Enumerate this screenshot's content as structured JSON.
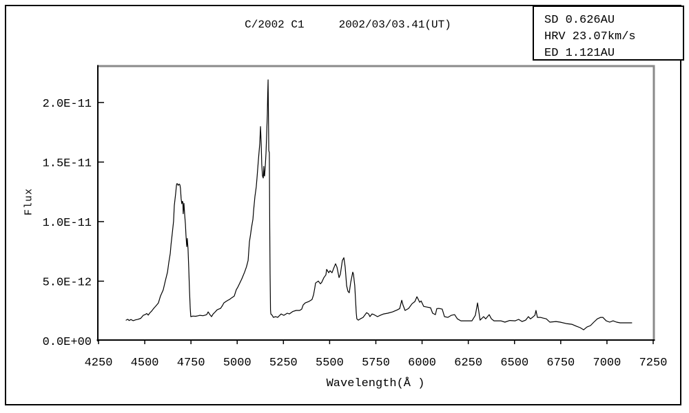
{
  "info_box": {
    "lines": [
      "SD 0.626AU",
      "HRV 23.07km/s",
      "ED 1.121AU"
    ]
  },
  "chart_data": {
    "type": "line",
    "title": "C/2002 C1    2002/03/03.41(UT)",
    "title_parts": [
      "C/2002 C1",
      "2002/03/03.41(UT)"
    ],
    "xlabel": "Wavelength(Å )",
    "ylabel": "Flux",
    "xlim": [
      4250,
      7250
    ],
    "ylim": [
      0,
      2.3e-11
    ],
    "grid": false,
    "legend_position": "none",
    "line_color": "#000000",
    "frame_gray": "#8a8a8a",
    "x_ticks": [
      {
        "value": 4250,
        "label": "4250"
      },
      {
        "value": 4500,
        "label": "4500"
      },
      {
        "value": 4750,
        "label": "4750"
      },
      {
        "value": 5000,
        "label": "5000"
      },
      {
        "value": 5250,
        "label": "5250"
      },
      {
        "value": 5500,
        "label": "5500"
      },
      {
        "value": 5750,
        "label": "5750"
      },
      {
        "value": 6000,
        "label": "6000"
      },
      {
        "value": 6250,
        "label": "6250"
      },
      {
        "value": 6500,
        "label": "6500"
      },
      {
        "value": 6750,
        "label": "6750"
      },
      {
        "value": 7000,
        "label": "7000"
      },
      {
        "value": 7250,
        "label": "7250"
      }
    ],
    "y_ticks": [
      {
        "value": 0,
        "label": "0.0E+00"
      },
      {
        "value": 5e-12,
        "label": "5.0E-12"
      },
      {
        "value": 1e-11,
        "label": "1.0E-11"
      },
      {
        "value": 1.5e-11,
        "label": "1.5E-11"
      },
      {
        "value": 2e-11,
        "label": "2.0E-11"
      }
    ],
    "series": [
      {
        "name": "comet-spectrum",
        "flux_unit_factor": 1e-12,
        "points": [
          [
            4399,
            1.73
          ],
          [
            4408,
            1.8
          ],
          [
            4416,
            1.7
          ],
          [
            4425,
            1.78
          ],
          [
            4437,
            1.68
          ],
          [
            4450,
            1.75
          ],
          [
            4463,
            1.8
          ],
          [
            4478,
            1.88
          ],
          [
            4492,
            2.13
          ],
          [
            4503,
            2.2
          ],
          [
            4511,
            2.28
          ],
          [
            4519,
            2.15
          ],
          [
            4526,
            2.31
          ],
          [
            4538,
            2.5
          ],
          [
            4548,
            2.71
          ],
          [
            4562,
            2.95
          ],
          [
            4574,
            3.17
          ],
          [
            4585,
            3.75
          ],
          [
            4600,
            4.27
          ],
          [
            4611,
            5.01
          ],
          [
            4623,
            5.76
          ],
          [
            4630,
            6.57
          ],
          [
            4638,
            7.32
          ],
          [
            4642,
            8.07
          ],
          [
            4649,
            9.05
          ],
          [
            4656,
            10.03
          ],
          [
            4660,
            11.36
          ],
          [
            4667,
            12.33
          ],
          [
            4672,
            13.1
          ],
          [
            4675,
            13.2
          ],
          [
            4681,
            13.05
          ],
          [
            4686,
            13.15
          ],
          [
            4690,
            13.09
          ],
          [
            4693,
            12.8
          ],
          [
            4697,
            11.93
          ],
          [
            4700,
            11.5
          ],
          [
            4703,
            11.7
          ],
          [
            4706,
            11.64
          ],
          [
            4708,
            10.66
          ],
          [
            4712,
            11.53
          ],
          [
            4716,
            10.61
          ],
          [
            4720,
            9.8
          ],
          [
            4723,
            8.88
          ],
          [
            4727,
            7.9
          ],
          [
            4730,
            8.59
          ],
          [
            4734,
            7.72
          ],
          [
            4738,
            6.17
          ],
          [
            4742,
            4.27
          ],
          [
            4746,
            2.71
          ],
          [
            4749,
            2.02
          ],
          [
            4756,
            2.05
          ],
          [
            4761,
            2.07
          ],
          [
            4775,
            2.05
          ],
          [
            4790,
            2.1
          ],
          [
            4798,
            2.13
          ],
          [
            4815,
            2.1
          ],
          [
            4827,
            2.15
          ],
          [
            4835,
            2.19
          ],
          [
            4843,
            2.42
          ],
          [
            4852,
            2.2
          ],
          [
            4861,
            2.02
          ],
          [
            4870,
            2.25
          ],
          [
            4880,
            2.4
          ],
          [
            4891,
            2.59
          ],
          [
            4900,
            2.65
          ],
          [
            4910,
            2.71
          ],
          [
            4920,
            2.95
          ],
          [
            4928,
            3.17
          ],
          [
            4940,
            3.3
          ],
          [
            4950,
            3.4
          ],
          [
            4958,
            3.46
          ],
          [
            4970,
            3.6
          ],
          [
            4984,
            3.75
          ],
          [
            4995,
            4.27
          ],
          [
            5005,
            4.55
          ],
          [
            5014,
            4.84
          ],
          [
            5025,
            5.2
          ],
          [
            5040,
            5.76
          ],
          [
            5050,
            6.2
          ],
          [
            5059,
            6.74
          ],
          [
            5066,
            8.3
          ],
          [
            5072,
            8.9
          ],
          [
            5077,
            9.45
          ],
          [
            5085,
            10.2
          ],
          [
            5089,
            10.95
          ],
          [
            5096,
            12.1
          ],
          [
            5103,
            12.91
          ],
          [
            5107,
            13.66
          ],
          [
            5111,
            14.41
          ],
          [
            5115,
            15.22
          ],
          [
            5122,
            16.54
          ],
          [
            5126,
            17.98
          ],
          [
            5130,
            16.54
          ],
          [
            5133,
            14.81
          ],
          [
            5137,
            13.83
          ],
          [
            5141,
            13.66
          ],
          [
            5144,
            14.64
          ],
          [
            5146,
            13.9
          ],
          [
            5148,
            13.83
          ],
          [
            5152,
            14.64
          ],
          [
            5156,
            15.79
          ],
          [
            5159,
            17.12
          ],
          [
            5163,
            19.02
          ],
          [
            5165,
            20.58
          ],
          [
            5167,
            21.9
          ],
          [
            5169,
            19.02
          ],
          [
            5171,
            15.97
          ],
          [
            5174,
            15.79
          ],
          [
            5176,
            9.45
          ],
          [
            5178,
            5.59
          ],
          [
            5180,
            2.6
          ],
          [
            5182,
            2.25
          ],
          [
            5189,
            2.13
          ],
          [
            5196,
            1.96
          ],
          [
            5208,
            2.02
          ],
          [
            5219,
            1.96
          ],
          [
            5238,
            2.25
          ],
          [
            5252,
            2.13
          ],
          [
            5271,
            2.31
          ],
          [
            5282,
            2.25
          ],
          [
            5300,
            2.45
          ],
          [
            5319,
            2.54
          ],
          [
            5338,
            2.54
          ],
          [
            5349,
            2.65
          ],
          [
            5357,
            3.0
          ],
          [
            5368,
            3.17
          ],
          [
            5387,
            3.29
          ],
          [
            5405,
            3.46
          ],
          [
            5413,
            3.86
          ],
          [
            5420,
            4.44
          ],
          [
            5424,
            4.84
          ],
          [
            5439,
            5.01
          ],
          [
            5450,
            4.78
          ],
          [
            5457,
            4.9
          ],
          [
            5469,
            5.3
          ],
          [
            5480,
            5.53
          ],
          [
            5484,
            5.99
          ],
          [
            5495,
            5.71
          ],
          [
            5502,
            5.88
          ],
          [
            5513,
            5.71
          ],
          [
            5521,
            6.05
          ],
          [
            5532,
            6.46
          ],
          [
            5540,
            6.17
          ],
          [
            5551,
            5.3
          ],
          [
            5558,
            5.59
          ],
          [
            5569,
            6.74
          ],
          [
            5577,
            6.97
          ],
          [
            5584,
            6.17
          ],
          [
            5592,
            4.61
          ],
          [
            5599,
            4.15
          ],
          [
            5606,
            4.03
          ],
          [
            5614,
            4.9
          ],
          [
            5625,
            5.76
          ],
          [
            5629,
            5.59
          ],
          [
            5636,
            4.61
          ],
          [
            5640,
            3.46
          ],
          [
            5644,
            2.31
          ],
          [
            5647,
            1.84
          ],
          [
            5655,
            1.73
          ],
          [
            5666,
            1.84
          ],
          [
            5681,
            1.96
          ],
          [
            5700,
            2.36
          ],
          [
            5711,
            2.25
          ],
          [
            5718,
            2.02
          ],
          [
            5729,
            2.25
          ],
          [
            5740,
            2.19
          ],
          [
            5759,
            2.02
          ],
          [
            5774,
            2.13
          ],
          [
            5792,
            2.25
          ],
          [
            5815,
            2.31
          ],
          [
            5841,
            2.42
          ],
          [
            5866,
            2.59
          ],
          [
            5879,
            2.7
          ],
          [
            5890,
            3.4
          ],
          [
            5897,
            3.0
          ],
          [
            5908,
            2.54
          ],
          [
            5927,
            2.71
          ],
          [
            5946,
            3.11
          ],
          [
            5961,
            3.29
          ],
          [
            5972,
            3.69
          ],
          [
            5980,
            3.46
          ],
          [
            5987,
            3.23
          ],
          [
            5995,
            3.34
          ],
          [
            6009,
            2.88
          ],
          [
            6028,
            2.82
          ],
          [
            6046,
            2.77
          ],
          [
            6057,
            2.31
          ],
          [
            6072,
            2.19
          ],
          [
            6080,
            2.7
          ],
          [
            6091,
            2.71
          ],
          [
            6109,
            2.65
          ],
          [
            6121,
            2.02
          ],
          [
            6139,
            1.96
          ],
          [
            6158,
            2.13
          ],
          [
            6176,
            2.19
          ],
          [
            6191,
            1.84
          ],
          [
            6210,
            1.67
          ],
          [
            6240,
            1.67
          ],
          [
            6270,
            1.67
          ],
          [
            6288,
            2.13
          ],
          [
            6300,
            3.17
          ],
          [
            6307,
            2.42
          ],
          [
            6314,
            1.73
          ],
          [
            6333,
            2.02
          ],
          [
            6344,
            1.84
          ],
          [
            6363,
            2.19
          ],
          [
            6375,
            1.84
          ],
          [
            6389,
            1.67
          ],
          [
            6426,
            1.67
          ],
          [
            6448,
            1.56
          ],
          [
            6474,
            1.7
          ],
          [
            6504,
            1.67
          ],
          [
            6522,
            1.79
          ],
          [
            6541,
            1.61
          ],
          [
            6560,
            1.73
          ],
          [
            6575,
            2.02
          ],
          [
            6586,
            1.84
          ],
          [
            6597,
            1.96
          ],
          [
            6610,
            2.13
          ],
          [
            6616,
            2.54
          ],
          [
            6624,
            1.96
          ],
          [
            6640,
            1.96
          ],
          [
            6654,
            1.9
          ],
          [
            6672,
            1.84
          ],
          [
            6691,
            1.56
          ],
          [
            6724,
            1.61
          ],
          [
            6747,
            1.56
          ],
          [
            6780,
            1.44
          ],
          [
            6810,
            1.38
          ],
          [
            6836,
            1.21
          ],
          [
            6855,
            1.1
          ],
          [
            6874,
            0.92
          ],
          [
            6892,
            1.15
          ],
          [
            6911,
            1.27
          ],
          [
            6929,
            1.56
          ],
          [
            6948,
            1.84
          ],
          [
            6966,
            1.96
          ],
          [
            6978,
            1.96
          ],
          [
            6996,
            1.67
          ],
          [
            7015,
            1.56
          ],
          [
            7033,
            1.67
          ],
          [
            7052,
            1.56
          ],
          [
            7071,
            1.5
          ],
          [
            7097,
            1.5
          ],
          [
            7134,
            1.5
          ]
        ]
      }
    ]
  }
}
